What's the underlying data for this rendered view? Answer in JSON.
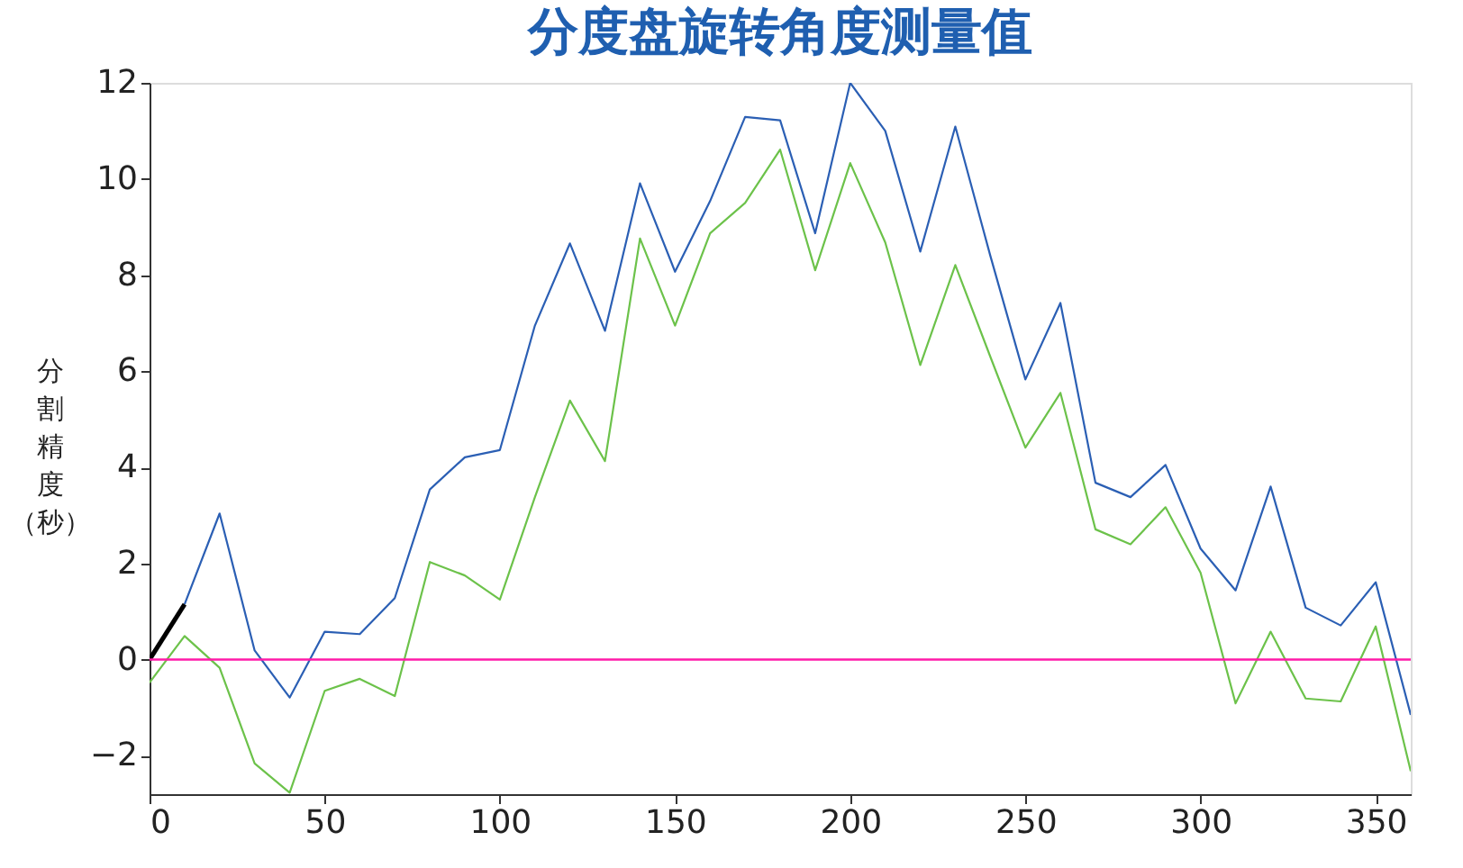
{
  "chart_data": {
    "type": "line",
    "title": "分度盘旋转角度测量值",
    "ylabel": "分割精度（秒）",
    "x": [
      0,
      10,
      20,
      30,
      40,
      50,
      60,
      70,
      80,
      90,
      100,
      110,
      120,
      130,
      140,
      150,
      160,
      170,
      180,
      190,
      200,
      210,
      220,
      230,
      240,
      250,
      260,
      270,
      280,
      290,
      300,
      310,
      320,
      330,
      340,
      350,
      360
    ],
    "series": [
      {
        "color": "#2b5fb4",
        "values": [
          null,
          1.15,
          3.04,
          0.19,
          -0.79,
          0.58,
          0.53,
          1.28,
          3.54,
          4.21,
          4.36,
          6.95,
          8.66,
          6.84,
          9.91,
          8.07,
          9.54,
          11.29,
          11.22,
          8.87,
          12.0,
          11.0,
          8.49,
          11.09,
          8.4,
          5.83,
          7.42,
          3.68,
          3.38,
          4.05,
          2.31,
          1.44,
          3.6,
          1.08,
          0.71,
          1.61,
          -1.15
        ]
      },
      {
        "color": "#6cc24a",
        "values": [
          -0.48,
          0.49,
          -0.17,
          -2.16,
          -2.77,
          -0.65,
          -0.4,
          -0.76,
          2.03,
          1.75,
          1.25,
          3.38,
          5.39,
          4.13,
          8.76,
          6.95,
          8.87,
          9.5,
          10.61,
          8.1,
          10.33,
          8.68,
          6.13,
          8.21,
          6.3,
          4.41,
          5.55,
          2.71,
          2.4,
          3.17,
          1.81,
          -0.91,
          0.58,
          -0.81,
          -0.87,
          0.69,
          -2.32
        ]
      },
      {
        "color": "#000000",
        "x": [
          0,
          10
        ],
        "values": [
          0,
          1.15
        ]
      }
    ],
    "xlim": [
      0,
      360
    ],
    "xticks": [
      0,
      50,
      100,
      150,
      200,
      250,
      300,
      350
    ],
    "ylim": [
      -2.8,
      12
    ],
    "yticks": [
      -2,
      0,
      2,
      4,
      6,
      8,
      10,
      12
    ],
    "ref_lines": [
      {
        "axis": "y",
        "value": 0,
        "color": "#ff1aa8"
      }
    ],
    "grid": false,
    "marker": "none",
    "line_style": "solid"
  }
}
